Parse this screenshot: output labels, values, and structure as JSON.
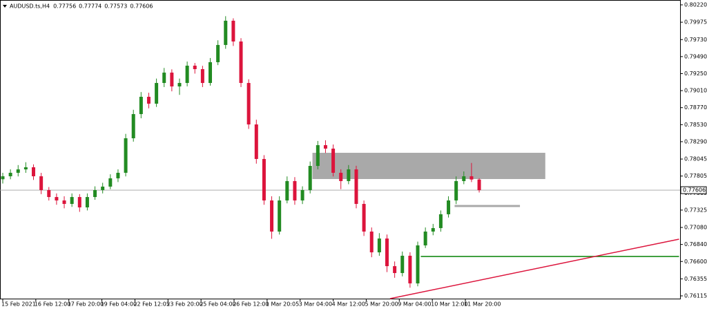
{
  "chart_data": {
    "type": "candlestick",
    "symbol": "AUDUSD.ts,H4",
    "header_ohlc": [
      0.77756,
      0.77774,
      0.77573,
      0.77606
    ],
    "current_price": 0.77606,
    "up_color": "#228b22",
    "down_color": "#dc143c",
    "ylim": [
      0.76115,
      0.8022
    ],
    "yticks": [
      {
        "value": 0.8022,
        "label": "0.80220"
      },
      0.79975,
      {
        "value": 0.7973,
        "label": "0.79730"
      },
      {
        "value": 0.7949,
        "label": "0.79490"
      },
      {
        "value": 0.7925,
        "label": "0.79250"
      },
      {
        "value": 0.7901,
        "label": "0.79010"
      },
      {
        "value": 0.7877,
        "label": "0.78770"
      },
      {
        "value": 0.7853,
        "label": "0.78530"
      },
      {
        "value": 0.7829,
        "label": "0.78290"
      },
      0.78045,
      0.77805,
      0.77565,
      0.77325,
      {
        "value": 0.7708,
        "label": "0.77080"
      },
      {
        "value": 0.7684,
        "label": "0.76840"
      },
      {
        "value": 0.766,
        "label": "0.76600"
      },
      0.76355,
      0.76115
    ],
    "xticks": [
      {
        "value": 0,
        "label": "15 Feb 2021"
      },
      {
        "value": 4.3,
        "label": "16 Feb 12:00"
      },
      {
        "value": 8.6,
        "label": "17 Feb 20:00"
      },
      {
        "value": 12.9,
        "label": "19 Feb 04:00"
      },
      {
        "value": 17.2,
        "label": "22 Feb 12:05"
      },
      {
        "value": 21.5,
        "label": "23 Feb 20:00"
      },
      {
        "value": 25.8,
        "label": "25 Feb 04:00"
      },
      {
        "value": 30.1,
        "label": "26 Feb 12:00"
      },
      {
        "value": 34.4,
        "label": "1 Mar 20:05"
      },
      {
        "value": 38.7,
        "label": "3 Mar 04:00"
      },
      {
        "value": 43,
        "label": "4 Mar 12:00"
      },
      {
        "value": 47.3,
        "label": "5 Mar 20:00"
      },
      {
        "value": 51.6,
        "label": "9 Mar 04:00"
      },
      {
        "value": 55.9,
        "label": "10 Mar 12:00"
      },
      {
        "value": 60.2,
        "label": "11 Mar 20:00"
      }
    ],
    "ohlc": [
      [
        0.7776,
        0.7785,
        0.777,
        0.77802
      ],
      [
        0.77802,
        0.779,
        0.7776,
        0.77851
      ],
      [
        0.77851,
        0.7796,
        0.778,
        0.77899
      ],
      [
        0.77899,
        0.78,
        0.7785,
        0.77929
      ],
      [
        0.77929,
        0.7797,
        0.7775,
        0.77802
      ],
      [
        0.77802,
        0.7785,
        0.7755,
        0.77607
      ],
      [
        0.77607,
        0.7765,
        0.7746,
        0.77509
      ],
      [
        0.77509,
        0.7756,
        0.774,
        0.77461
      ],
      [
        0.77461,
        0.7752,
        0.7735,
        0.77412
      ],
      [
        0.77412,
        0.7756,
        0.7737,
        0.77509
      ],
      [
        0.77509,
        0.7755,
        0.773,
        0.77363
      ],
      [
        0.77363,
        0.7756,
        0.7732,
        0.77509
      ],
      [
        0.77509,
        0.7766,
        0.7747,
        0.77607
      ],
      [
        0.77607,
        0.7771,
        0.7756,
        0.77656
      ],
      [
        0.77656,
        0.7783,
        0.7762,
        0.77773
      ],
      [
        0.77773,
        0.779,
        0.7772,
        0.77851
      ],
      [
        0.77851,
        0.784,
        0.778,
        0.78338
      ],
      [
        0.78338,
        0.7874,
        0.7829,
        0.78679
      ],
      [
        0.78679,
        0.7899,
        0.7862,
        0.78923
      ],
      [
        0.78923,
        0.7898,
        0.7876,
        0.78826
      ],
      [
        0.78826,
        0.7918,
        0.7878,
        0.79118
      ],
      [
        0.79118,
        0.7933,
        0.7906,
        0.79264
      ],
      [
        0.79264,
        0.7931,
        0.79,
        0.79069
      ],
      [
        0.79069,
        0.7918,
        0.7895,
        0.79118
      ],
      [
        0.79118,
        0.7942,
        0.7907,
        0.79362
      ],
      [
        0.79362,
        0.794,
        0.7925,
        0.79313
      ],
      [
        0.79313,
        0.7936,
        0.7906,
        0.79118
      ],
      [
        0.79118,
        0.7947,
        0.7908,
        0.79411
      ],
      [
        0.79411,
        0.7972,
        0.7937,
        0.79654
      ],
      [
        0.79654,
        0.8006,
        0.796,
        0.79996
      ],
      [
        0.79996,
        0.8003,
        0.7964,
        0.79703
      ],
      [
        0.79703,
        0.7975,
        0.7906,
        0.79118
      ],
      [
        0.79118,
        0.7917,
        0.7847,
        0.78533
      ],
      [
        0.78533,
        0.786,
        0.7798,
        0.78046
      ],
      [
        0.78046,
        0.781,
        0.774,
        0.77461
      ],
      [
        0.77461,
        0.7752,
        0.7692,
        0.77022
      ],
      [
        0.77022,
        0.7752,
        0.7698,
        0.77461
      ],
      [
        0.77461,
        0.778,
        0.7742,
        0.77734
      ],
      [
        0.77734,
        0.7779,
        0.774,
        0.77461
      ],
      [
        0.77461,
        0.7766,
        0.7741,
        0.77607
      ],
      [
        0.77607,
        0.7801,
        0.7756,
        0.77948
      ],
      [
        0.77948,
        0.783,
        0.779,
        0.78241
      ],
      [
        0.78241,
        0.7831,
        0.7813,
        0.78192
      ],
      [
        0.78192,
        0.7825,
        0.778,
        0.77851
      ],
      [
        0.77851,
        0.779,
        0.7762,
        0.77734
      ],
      [
        0.77734,
        0.7796,
        0.7769,
        0.77899
      ],
      [
        0.77899,
        0.7795,
        0.7735,
        0.77412
      ],
      [
        0.77412,
        0.7746,
        0.7696,
        0.77022
      ],
      [
        0.77022,
        0.7708,
        0.7666,
        0.76729
      ],
      [
        0.76729,
        0.77,
        0.7668,
        0.76924
      ],
      [
        0.76924,
        0.7698,
        0.7645,
        0.76534
      ],
      [
        0.76534,
        0.766,
        0.7637,
        0.76437
      ],
      [
        0.76437,
        0.7674,
        0.7639,
        0.76681
      ],
      [
        0.76681,
        0.7673,
        0.7623,
        0.76291
      ],
      [
        0.76291,
        0.7688,
        0.7625,
        0.76827
      ],
      [
        0.76827,
        0.7708,
        0.7679,
        0.77022
      ],
      [
        0.77022,
        0.7713,
        0.7697,
        0.77071
      ],
      [
        0.77071,
        0.7732,
        0.7702,
        0.77266
      ],
      [
        0.77266,
        0.7752,
        0.7722,
        0.77461
      ],
      [
        0.77461,
        0.778,
        0.7741,
        0.77734
      ],
      [
        0.77734,
        0.7787,
        0.7769,
        0.77802
      ],
      [
        0.77802,
        0.7799,
        0.7772,
        0.77756
      ],
      [
        0.77756,
        0.77774,
        0.77573,
        0.77606
      ]
    ],
    "zone": {
      "start": 40.3,
      "end": 70.6,
      "top": 0.78133,
      "bottom": 0.77763,
      "color": "#a9a9a9"
    },
    "level_lines": [
      {
        "start": 58.8,
        "end": 67.3,
        "price": 0.77383,
        "color": "#a9a9a9"
      },
      {
        "start": 54.4,
        "end": 88,
        "price": 0.76671,
        "color": "#008000"
      }
    ],
    "trendline": {
      "start": 50.4,
      "end": 88,
      "price_start": 0.76076,
      "price_end": 0.76915,
      "color": "#dc143c"
    }
  }
}
